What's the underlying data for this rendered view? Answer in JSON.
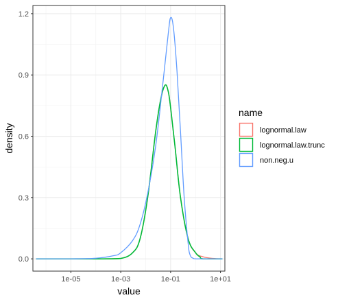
{
  "chart_data": {
    "type": "line",
    "xlabel": "value",
    "ylabel": "density",
    "x_scale": "log10",
    "xlim": [
      3e-07,
      15
    ],
    "ylim": [
      -0.06,
      1.24
    ],
    "x_ticks": [
      {
        "value": 1e-05,
        "label": "1e-05"
      },
      {
        "value": 0.001,
        "label": "1e-03"
      },
      {
        "value": 0.1,
        "label": "1e-01"
      },
      {
        "value": 10,
        "label": "1e+01"
      }
    ],
    "y_ticks": [
      {
        "value": 0.0,
        "label": "0.0"
      },
      {
        "value": 0.3,
        "label": "0.3"
      },
      {
        "value": 0.6,
        "label": "0.6"
      },
      {
        "value": 0.9,
        "label": "0.9"
      },
      {
        "value": 1.2,
        "label": "1.2"
      }
    ],
    "grid": true,
    "legend": {
      "title": "name",
      "position": "right"
    },
    "series": [
      {
        "name": "lognormal.law",
        "color": "#F8766D",
        "x": [
          4e-07,
          1e-05,
          0.0002,
          0.001,
          0.003,
          0.006,
          0.012,
          0.025,
          0.04,
          0.06,
          0.08,
          0.1,
          0.15,
          0.25,
          0.5,
          1,
          2,
          5,
          12
        ],
        "y": [
          0,
          0,
          0,
          0.002,
          0.03,
          0.1,
          0.3,
          0.62,
          0.78,
          0.85,
          0.82,
          0.74,
          0.55,
          0.3,
          0.1,
          0.03,
          0.01,
          0.002,
          0
        ]
      },
      {
        "name": "lognormal.law.trunc",
        "color": "#00BA38",
        "x": [
          4e-07,
          1e-05,
          0.0002,
          0.001,
          0.003,
          0.006,
          0.012,
          0.025,
          0.04,
          0.06,
          0.08,
          0.1,
          0.15,
          0.25,
          0.5,
          1,
          1.5,
          2,
          12
        ],
        "y": [
          0,
          0,
          0,
          0.002,
          0.03,
          0.1,
          0.3,
          0.62,
          0.78,
          0.85,
          0.82,
          0.74,
          0.55,
          0.3,
          0.1,
          0.03,
          0.01,
          0,
          0
        ]
      },
      {
        "name": "non.neg.u",
        "color": "#619CFF",
        "x": [
          4e-07,
          1e-05,
          0.0001,
          0.0005,
          0.001,
          0.003,
          0.006,
          0.012,
          0.025,
          0.05,
          0.08,
          0.1,
          0.13,
          0.18,
          0.25,
          0.35,
          0.5,
          0.6,
          0.8,
          1.2,
          12
        ],
        "y": [
          0,
          0,
          0.003,
          0.015,
          0.03,
          0.09,
          0.17,
          0.32,
          0.55,
          0.87,
          1.1,
          1.18,
          1.13,
          0.92,
          0.62,
          0.3,
          0.08,
          0.02,
          0.003,
          0,
          0
        ]
      }
    ]
  }
}
